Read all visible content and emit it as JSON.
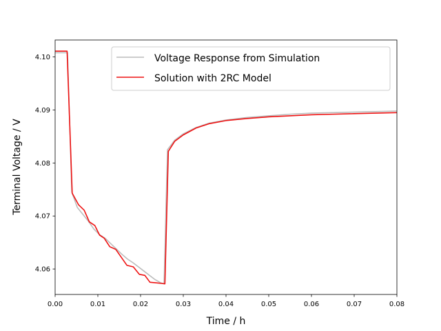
{
  "chart_data": {
    "type": "line",
    "title": "",
    "xlabel": "Time / h",
    "ylabel": "Terminal Voltage / V",
    "xlim": [
      0.0,
      0.08
    ],
    "ylim": [
      4.0552,
      4.1032
    ],
    "x_ticks": [
      0.0,
      0.01,
      0.02,
      0.03,
      0.04,
      0.05,
      0.06,
      0.07,
      0.08
    ],
    "x_tick_labels": [
      "0.00",
      "0.01",
      "0.02",
      "0.03",
      "0.04",
      "0.05",
      "0.06",
      "0.07",
      "0.08"
    ],
    "y_ticks": [
      4.06,
      4.07,
      4.08,
      4.09,
      4.1
    ],
    "y_tick_labels": [
      "4.06",
      "4.07",
      "4.08",
      "4.09",
      "4.10"
    ],
    "grid": false,
    "legend_position": "top-right",
    "series": [
      {
        "name": "Voltage Response from Simulation",
        "color": "#bbbbbb",
        "x": [
          0,
          0.0029,
          0.0039,
          0.0052,
          0.0065,
          0.0078,
          0.0091,
          0.0104,
          0.0117,
          0.013,
          0.0143,
          0.0156,
          0.0169,
          0.0182,
          0.0195,
          0.0208,
          0.0221,
          0.0234,
          0.0247,
          0.0255,
          0.0263,
          0.028,
          0.03,
          0.033,
          0.036,
          0.04,
          0.045,
          0.05,
          0.055,
          0.06,
          0.065,
          0.07,
          0.075,
          0.08
        ],
        "y": [
          4.1008,
          4.1008,
          4.0745,
          4.0716,
          4.0703,
          4.069,
          4.0675,
          4.0665,
          4.0658,
          4.0648,
          4.0638,
          4.0628,
          4.0619,
          4.0612,
          4.0604,
          4.0596,
          4.0588,
          4.058,
          4.0574,
          4.0572,
          4.0825,
          4.0843,
          4.0855,
          4.0867,
          4.0875,
          4.0881,
          4.0886,
          4.0889,
          4.0892,
          4.0894,
          4.0895,
          4.0896,
          4.0897,
          4.0898
        ]
      },
      {
        "name": "Solution with 2RC Model",
        "color": "#ee1111",
        "x": [
          0,
          0.0028,
          0.004,
          0.0055,
          0.0068,
          0.008,
          0.0093,
          0.0104,
          0.0115,
          0.0128,
          0.0142,
          0.0155,
          0.0168,
          0.0183,
          0.0197,
          0.021,
          0.0222,
          0.0235,
          0.0248,
          0.0257,
          0.0265,
          0.028,
          0.03,
          0.033,
          0.036,
          0.04,
          0.045,
          0.05,
          0.055,
          0.06,
          0.065,
          0.07,
          0.075,
          0.08
        ],
        "y": [
          4.1011,
          4.1011,
          4.0743,
          4.0721,
          4.0711,
          4.0689,
          4.0682,
          4.0664,
          4.0658,
          4.0642,
          4.0637,
          4.0622,
          4.0607,
          4.0604,
          4.059,
          4.0588,
          4.0575,
          4.0574,
          4.0573,
          4.0572,
          4.0822,
          4.0841,
          4.0853,
          4.0866,
          4.0874,
          4.088,
          4.0884,
          4.0887,
          4.0889,
          4.0891,
          4.0892,
          4.0893,
          4.0894,
          4.0895
        ]
      }
    ]
  }
}
